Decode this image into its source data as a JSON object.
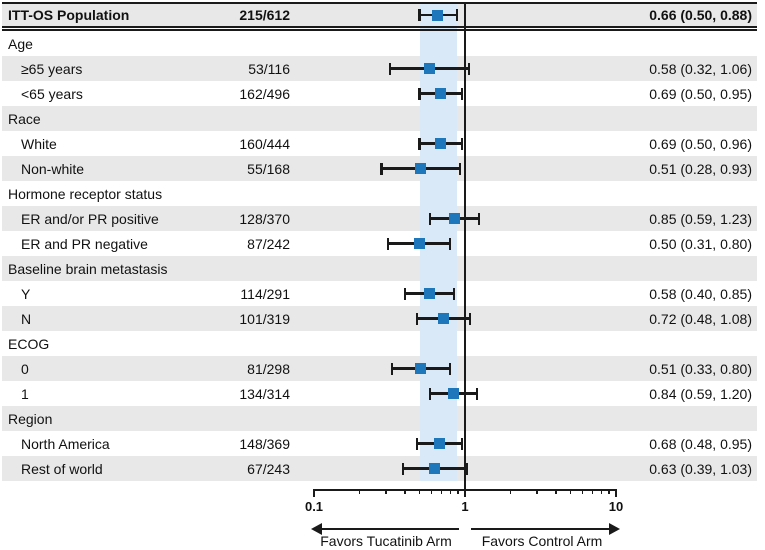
{
  "colors": {
    "marker_blue": "#1e77bb",
    "band_blue": "#d9e9f7",
    "stripe_gray": "#e8e8e8",
    "line_black": "#1a1a1a"
  },
  "chart_data": {
    "type": "forest",
    "title": "",
    "x_scale": "log10",
    "x_axis": {
      "range": [
        0.1,
        10
      ],
      "tick_values": [
        0.1,
        1,
        10
      ],
      "tick_labels": [
        "0.1",
        "1",
        "10"
      ],
      "minor_ticks": [
        0.2,
        0.3,
        0.4,
        0.5,
        0.6,
        0.7,
        0.8,
        0.9,
        2,
        3,
        4,
        5,
        6,
        7,
        8,
        9
      ]
    },
    "reference_line": 1,
    "shaded_band": {
      "from": 0.5,
      "to": 0.88
    },
    "footer": {
      "left_arrow_label": "Favors Tucatinib Arm",
      "right_arrow_label": "Favors Control Arm"
    },
    "rows": [
      {
        "kind": "overall",
        "label": "ITT-OS Population",
        "events": "215/612",
        "hr_text": "0.66 (0.50, 0.88)",
        "hr": 0.66,
        "lo": 0.5,
        "hi": 0.88
      },
      {
        "kind": "header",
        "label": "Age"
      },
      {
        "kind": "item",
        "label": "≥65 years",
        "events": "53/116",
        "hr_text": "0.58 (0.32, 1.06)",
        "hr": 0.58,
        "lo": 0.32,
        "hi": 1.06
      },
      {
        "kind": "item",
        "label": "<65 years",
        "events": "162/496",
        "hr_text": "0.69 (0.50, 0.95)",
        "hr": 0.69,
        "lo": 0.5,
        "hi": 0.95
      },
      {
        "kind": "header",
        "label": "Race"
      },
      {
        "kind": "item",
        "label": "White",
        "events": "160/444",
        "hr_text": "0.69 (0.50, 0.96)",
        "hr": 0.69,
        "lo": 0.5,
        "hi": 0.96
      },
      {
        "kind": "item",
        "label": "Non-white",
        "events": "55/168",
        "hr_text": "0.51 (0.28, 0.93)",
        "hr": 0.51,
        "lo": 0.28,
        "hi": 0.93
      },
      {
        "kind": "header",
        "label": "Hormone receptor status"
      },
      {
        "kind": "item",
        "label": "ER and/or PR positive",
        "events": "128/370",
        "hr_text": "0.85 (0.59, 1.23)",
        "hr": 0.85,
        "lo": 0.59,
        "hi": 1.23
      },
      {
        "kind": "item",
        "label": "ER and PR negative",
        "events": "87/242",
        "hr_text": "0.50 (0.31, 0.80)",
        "hr": 0.5,
        "lo": 0.31,
        "hi": 0.8
      },
      {
        "kind": "header",
        "label": "Baseline brain metastasis"
      },
      {
        "kind": "item",
        "label": "Y",
        "events": "114/291",
        "hr_text": "0.58 (0.40, 0.85)",
        "hr": 0.58,
        "lo": 0.4,
        "hi": 0.85
      },
      {
        "kind": "item",
        "label": "N",
        "events": "101/319",
        "hr_text": "0.72 (0.48, 1.08)",
        "hr": 0.72,
        "lo": 0.48,
        "hi": 1.08
      },
      {
        "kind": "header",
        "label": "ECOG"
      },
      {
        "kind": "item",
        "label": "0",
        "events": "81/298",
        "hr_text": "0.51 (0.33, 0.80)",
        "hr": 0.51,
        "lo": 0.33,
        "hi": 0.8
      },
      {
        "kind": "item",
        "label": "1",
        "events": "134/314",
        "hr_text": "0.84 (0.59, 1.20)",
        "hr": 0.84,
        "lo": 0.59,
        "hi": 1.2
      },
      {
        "kind": "header",
        "label": "Region"
      },
      {
        "kind": "item",
        "label": "North America",
        "events": "148/369",
        "hr_text": "0.68 (0.48, 0.95)",
        "hr": 0.68,
        "lo": 0.48,
        "hi": 0.95
      },
      {
        "kind": "item",
        "label": "Rest of world",
        "events": "67/243",
        "hr_text": "0.63 (0.39, 1.03)",
        "hr": 0.63,
        "lo": 0.39,
        "hi": 1.03
      }
    ]
  }
}
